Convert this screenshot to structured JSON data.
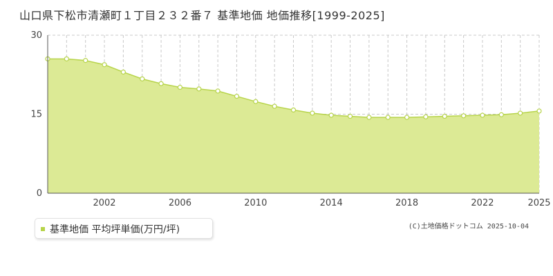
{
  "colors": {
    "fill": "#dcea95",
    "line": "#b7d44a",
    "point_fill": "#ffffff",
    "grid": "#c8c8c8",
    "axis": "#555555"
  },
  "legend": {
    "label": "基準地価 平均坪単価(万円/坪)"
  },
  "credit": "(C)土地価格ドットコム 2025-10-04",
  "chart_data": {
    "type": "area",
    "title": "山口県下松市清瀬町１丁目２３２番７ 基準地価 地価推移[1999-2025]",
    "xlabel": "",
    "ylabel": "",
    "x": [
      1999,
      2000,
      2001,
      2002,
      2003,
      2004,
      2005,
      2006,
      2007,
      2008,
      2009,
      2010,
      2011,
      2012,
      2013,
      2014,
      2015,
      2016,
      2017,
      2018,
      2019,
      2020,
      2021,
      2022,
      2023,
      2024,
      2025
    ],
    "series": [
      {
        "name": "基準地価 平均坪単価(万円/坪)",
        "values": [
          25.5,
          25.5,
          25.2,
          24.4,
          23.0,
          21.7,
          20.8,
          20.1,
          19.8,
          19.4,
          18.4,
          17.4,
          16.5,
          15.8,
          15.2,
          14.8,
          14.6,
          14.4,
          14.4,
          14.4,
          14.5,
          14.6,
          14.7,
          14.8,
          14.9,
          15.2,
          15.6
        ]
      }
    ],
    "xlim": [
      1999,
      2025
    ],
    "ylim": [
      0,
      30
    ],
    "x_ticks": [
      "2002",
      "2006",
      "2010",
      "2014",
      "2018",
      "2022",
      "2025"
    ],
    "y_ticks": [
      "0",
      "15",
      "30"
    ],
    "grid": true
  }
}
